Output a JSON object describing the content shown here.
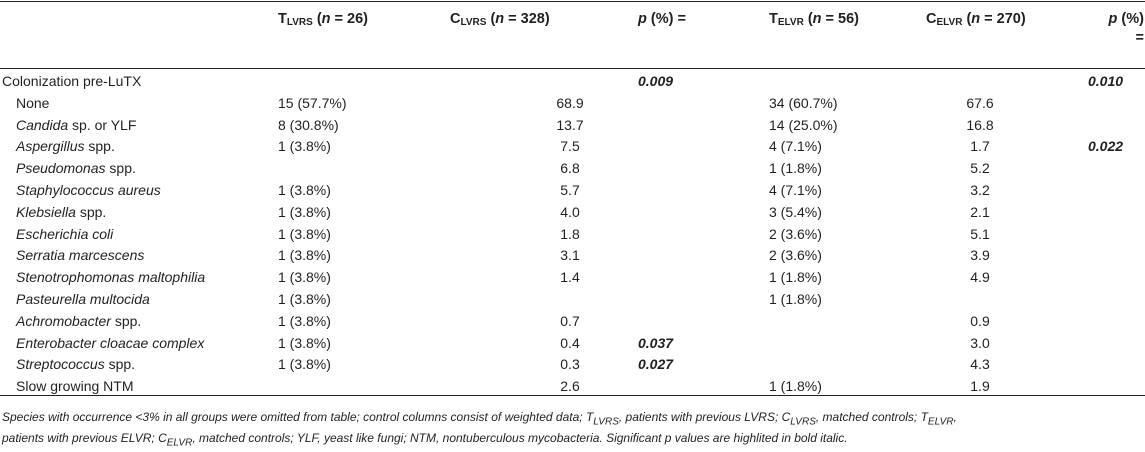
{
  "header": {
    "t1": {
      "letter": "T",
      "sub": "LVRS",
      "n_prefix": " (",
      "n_label": "n",
      "n_value": " = 26)"
    },
    "c1": {
      "letter": "C",
      "sub": "LVRS",
      "n_prefix": " (",
      "n_label": "n",
      "n_value": " = 328)"
    },
    "p1": {
      "p": "p",
      "rest": " (%) ="
    },
    "t2": {
      "letter": "T",
      "sub": "ELVR",
      "n_prefix": " (",
      "n_label": "n",
      "n_value": " = 56)"
    },
    "c2": {
      "letter": "C",
      "sub": "ELVR",
      "n_prefix": " (",
      "n_label": "n",
      "n_value": " = 270)"
    },
    "p2": {
      "p": "p",
      "rest1": " (%)",
      "rest2": "="
    }
  },
  "rows": [
    {
      "label": "Colonization pre-LuTX",
      "italic_part": "",
      "rest": "",
      "main": true,
      "t1": "",
      "c1": "",
      "p1": "0.009",
      "t2": "",
      "c2": "",
      "p2": "0.010"
    },
    {
      "label": "None",
      "italic_part": "",
      "rest": "",
      "main": false,
      "t1": "15 (57.7%)",
      "c1": "68.9",
      "p1": "",
      "t2": "34 (60.7%)",
      "c2": "67.6",
      "p2": ""
    },
    {
      "label": "",
      "italic_part": "Candida",
      "rest": " sp. or YLF",
      "main": false,
      "t1": "8 (30.8%)",
      "c1": "13.7",
      "p1": "",
      "t2": "14 (25.0%)",
      "c2": "16.8",
      "p2": ""
    },
    {
      "label": "",
      "italic_part": "Aspergillus",
      "rest": " spp.",
      "main": false,
      "t1": "1 (3.8%)",
      "c1": "7.5",
      "p1": "",
      "t2": "4 (7.1%)",
      "c2": "1.7",
      "p2": "0.022"
    },
    {
      "label": "",
      "italic_part": "Pseudomonas",
      "rest": " spp.",
      "main": false,
      "t1": "",
      "c1": "6.8",
      "p1": "",
      "t2": "1 (1.8%)",
      "c2": "5.2",
      "p2": ""
    },
    {
      "label": "",
      "italic_part": "Staphylococcus aureus",
      "rest": "",
      "main": false,
      "t1": "1 (3.8%)",
      "c1": "5.7",
      "p1": "",
      "t2": "4 (7.1%)",
      "c2": "3.2",
      "p2": ""
    },
    {
      "label": "",
      "italic_part": "Klebsiella",
      "rest": " spp.",
      "main": false,
      "t1": "1 (3.8%)",
      "c1": "4.0",
      "p1": "",
      "t2": "3 (5.4%)",
      "c2": "2.1",
      "p2": ""
    },
    {
      "label": "",
      "italic_part": "Escherichia coli",
      "rest": "",
      "main": false,
      "t1": "1 (3.8%)",
      "c1": "1.8",
      "p1": "",
      "t2": "2 (3.6%)",
      "c2": "5.1",
      "p2": ""
    },
    {
      "label": "",
      "italic_part": "Serratia marcescens",
      "rest": "",
      "main": false,
      "t1": "1 (3.8%)",
      "c1": "3.1",
      "p1": "",
      "t2": "2 (3.6%)",
      "c2": "3.9",
      "p2": ""
    },
    {
      "label": "",
      "italic_part": "Stenotrophomonas maltophilia",
      "rest": "",
      "main": false,
      "t1": "1 (3.8%)",
      "c1": "1.4",
      "p1": "",
      "t2": "1 (1.8%)",
      "c2": "4.9",
      "p2": ""
    },
    {
      "label": "",
      "italic_part": "Pasteurella multocida",
      "rest": "",
      "main": false,
      "t1": "1 (3.8%)",
      "c1": "",
      "p1": "",
      "t2": "1 (1.8%)",
      "c2": "",
      "p2": ""
    },
    {
      "label": "",
      "italic_part": "Achromobacter",
      "rest": " spp.",
      "main": false,
      "t1": "1 (3.8%)",
      "c1": "0.7",
      "p1": "",
      "t2": "",
      "c2": "0.9",
      "p2": ""
    },
    {
      "label": "",
      "italic_part": "Enterobacter cloacae complex",
      "rest": "",
      "main": false,
      "t1": "1 (3.8%)",
      "c1": "0.4",
      "p1": "0.037",
      "t2": "",
      "c2": "3.0",
      "p2": ""
    },
    {
      "label": "",
      "italic_part": "Streptococcus",
      "rest": " spp.",
      "main": false,
      "t1": "1 (3.8%)",
      "c1": "0.3",
      "p1": "0.027",
      "t2": "",
      "c2": "4.3",
      "p2": ""
    },
    {
      "label": "Slow growing NTM",
      "italic_part": "",
      "rest": "",
      "main": false,
      "t1": "",
      "c1": "2.6",
      "p1": "",
      "t2": "1 (1.8%)",
      "c2": "1.9",
      "p2": ""
    }
  ],
  "footnote": {
    "line1": "Species with occurrence <3% in all groups were omitted from table; control columns consist of weighted data; T",
    "s1": "LVRS",
    "t1": ", patients with previous LVRS; C",
    "s2": "LVRS",
    "t2": ", matched controls; T",
    "s3": "ELVR",
    "t3": ",",
    "line2a": "patients with previous ELVR; C",
    "s4": "ELVR",
    "line2b": ", matched controls; YLF, yeast like fungi; NTM, nontuberculous mycobacteria. Significant p values are highlited in bold italic."
  }
}
